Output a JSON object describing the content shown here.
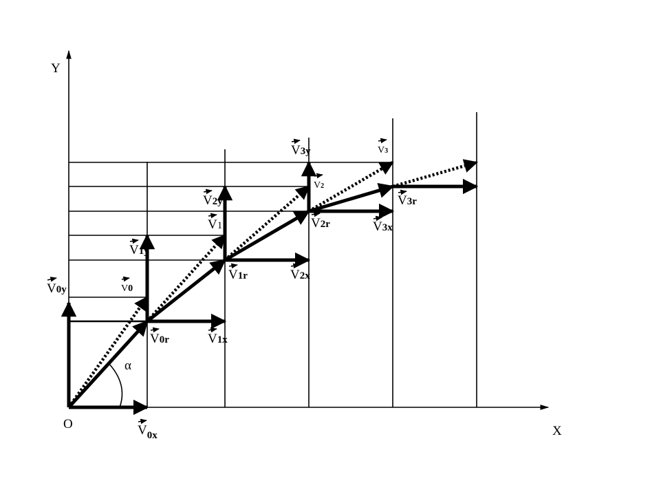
{
  "axes": {
    "x_label": "X",
    "y_label": "Y",
    "origin_label": "O",
    "angle_label": "α"
  },
  "labels": {
    "v0y": {
      "base": "V",
      "sub": "0y"
    },
    "v0": {
      "base": "V",
      "sub": "0"
    },
    "v1y": {
      "base": "V",
      "sub": "1y"
    },
    "v0r": {
      "base": "V",
      "sub": "0r"
    },
    "v1x": {
      "base": "V",
      "sub": "1x"
    },
    "v0x": {
      "base": "V",
      "sub": "0x"
    },
    "v1r": {
      "base": "V",
      "sub": "1r"
    },
    "v2x": {
      "base": "V",
      "sub": "2x"
    },
    "v2y": {
      "base": "V",
      "sub": "2y"
    },
    "v1": {
      "base": "V",
      "sub": "1"
    },
    "v3y": {
      "base": "V",
      "sub": "3y"
    },
    "v3": {
      "base": "V",
      "sub": "3"
    },
    "v2": {
      "base": "V",
      "sub": "2"
    },
    "v2r": {
      "base": "V",
      "sub": "2r"
    },
    "v3x": {
      "base": "V",
      "sub": "3x"
    },
    "v3r": {
      "base": "V",
      "sub": "3r"
    }
  }
}
